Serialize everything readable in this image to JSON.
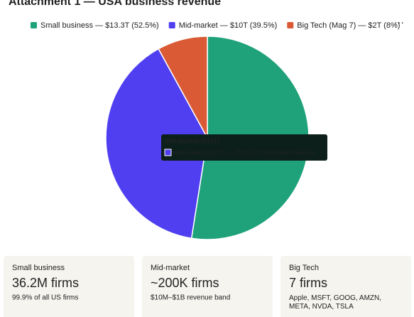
{
  "chart_data": {
    "type": "pie",
    "title": "Attachment 1 — USA business revenue",
    "categories": [
      "Small business — $13.3T (52.5%)",
      "Mid-market — $10T (39.5%)",
      "Big Tech (Mag 7) — $2T (8%)"
    ],
    "values": [
      52.5,
      39.5,
      8
    ],
    "colors": [
      "#1fa27a",
      "#4f3ff0",
      "#d95a35"
    ],
    "tooltip": {
      "title": "Mid-market ($10T)",
      "text": "Mid-market ($10T) — 39.5% of combined revenue"
    }
  },
  "more_button": "⋯",
  "cards": [
    {
      "label": "Small business",
      "value": "36.2M firms",
      "note": "99.9% of all US firms"
    },
    {
      "label": "Mid-market",
      "value": "~200K firms",
      "note": "$10M–$1B revenue band"
    },
    {
      "label": "Big Tech",
      "value": "7 firms",
      "note": "Apple, MSFT, GOOG, AMZN, META, NVDA, TSLA"
    }
  ]
}
